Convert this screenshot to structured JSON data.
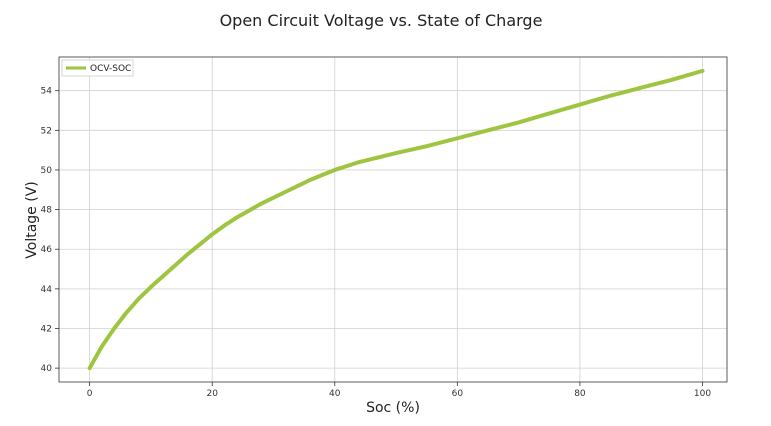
{
  "chart_data": {
    "type": "line",
    "title": "Open Circuit Voltage vs. State of Charge",
    "xlabel": "Soc (%)",
    "ylabel": "Voltage (V)",
    "xlim": [
      -5,
      104
    ],
    "ylim": [
      39.3,
      55.7
    ],
    "x_ticks": [
      0,
      20,
      40,
      60,
      80,
      100
    ],
    "y_ticks": [
      40,
      42,
      44,
      46,
      48,
      50,
      52,
      54
    ],
    "grid": true,
    "legend_position": "top-left",
    "series": [
      {
        "name": "OCV-SOC",
        "color": "#9dc53f",
        "x": [
          0,
          2,
          4,
          6,
          8,
          10,
          12,
          14,
          16,
          18,
          20,
          22,
          24,
          26,
          28,
          30,
          32,
          34,
          36,
          38,
          40,
          42,
          44,
          46,
          48,
          50,
          55,
          60,
          65,
          70,
          75,
          80,
          85,
          90,
          95,
          100
        ],
        "y": [
          40.0,
          41.1,
          42.0,
          42.8,
          43.5,
          44.1,
          44.65,
          45.2,
          45.75,
          46.25,
          46.75,
          47.2,
          47.6,
          47.95,
          48.3,
          48.6,
          48.9,
          49.2,
          49.5,
          49.75,
          50.0,
          50.2,
          50.4,
          50.55,
          50.7,
          50.85,
          51.2,
          51.6,
          52.0,
          52.4,
          52.85,
          53.3,
          53.75,
          54.15,
          54.55,
          55.0
        ]
      }
    ]
  }
}
